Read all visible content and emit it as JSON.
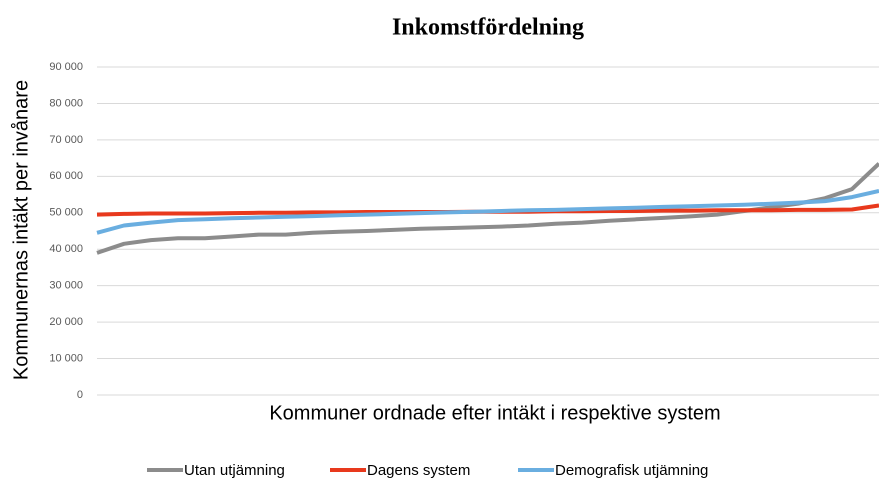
{
  "chart_data": {
    "type": "line",
    "title": "Inkomstfördelning",
    "y_label": "Kommunernas intäkt per invånare",
    "x_label": "Kommuner ordnade efter intäkt i respektive system",
    "categories": [
      null,
      null,
      null,
      null,
      null,
      null,
      null,
      null,
      null,
      null,
      null,
      null,
      null,
      null,
      null,
      null,
      null,
      null,
      null,
      null,
      null,
      null,
      null,
      null,
      null,
      null,
      null,
      null,
      null,
      null
    ],
    "series": [
      {
        "name": "Utan utjämning",
        "color": "#8c8c8c",
        "values": [
          39000,
          41500,
          42500,
          43000,
          43000,
          43500,
          44000,
          44000,
          44500,
          44800,
          45000,
          45300,
          45600,
          45800,
          46000,
          46200,
          46500,
          47000,
          47300,
          47800,
          48200,
          48600,
          49000,
          49500,
          50500,
          51500,
          52500,
          54000,
          56500,
          63500
        ]
      },
      {
        "name": "Dagens system",
        "color": "#e8391d",
        "values": [
          49500,
          49700,
          49800,
          49800,
          49800,
          49900,
          50000,
          50000,
          50100,
          50100,
          50200,
          50200,
          50200,
          50200,
          50300,
          50300,
          50300,
          50400,
          50400,
          50500,
          50500,
          50600,
          50600,
          50700,
          50700,
          50700,
          50800,
          50800,
          50900,
          52000
        ]
      },
      {
        "name": "Demografisk utjämning",
        "color": "#6aaee0",
        "values": [
          44500,
          46500,
          47300,
          48000,
          48200,
          48500,
          48700,
          48900,
          49100,
          49300,
          49500,
          49700,
          49900,
          50100,
          50300,
          50500,
          50700,
          50800,
          51000,
          51200,
          51400,
          51600,
          51800,
          52000,
          52200,
          52500,
          52800,
          53200,
          54300,
          56000
        ]
      }
    ],
    "ylim": [
      0,
      90000
    ],
    "yticks": [
      0,
      {
        "value": 10000,
        "label": "10 000"
      },
      {
        "value": 20000,
        "label": "20 000"
      },
      {
        "value": 30000,
        "label": "30 000"
      },
      {
        "value": 40000,
        "label": "40 000"
      },
      {
        "value": 50000,
        "label": "50 000"
      },
      {
        "value": 60000,
        "label": "60 000"
      },
      {
        "value": 70000,
        "label": "70 000"
      },
      {
        "value": 80000,
        "label": "80 000"
      },
      {
        "value": 90000,
        "label": "90 000"
      }
    ],
    "grid": true
  }
}
